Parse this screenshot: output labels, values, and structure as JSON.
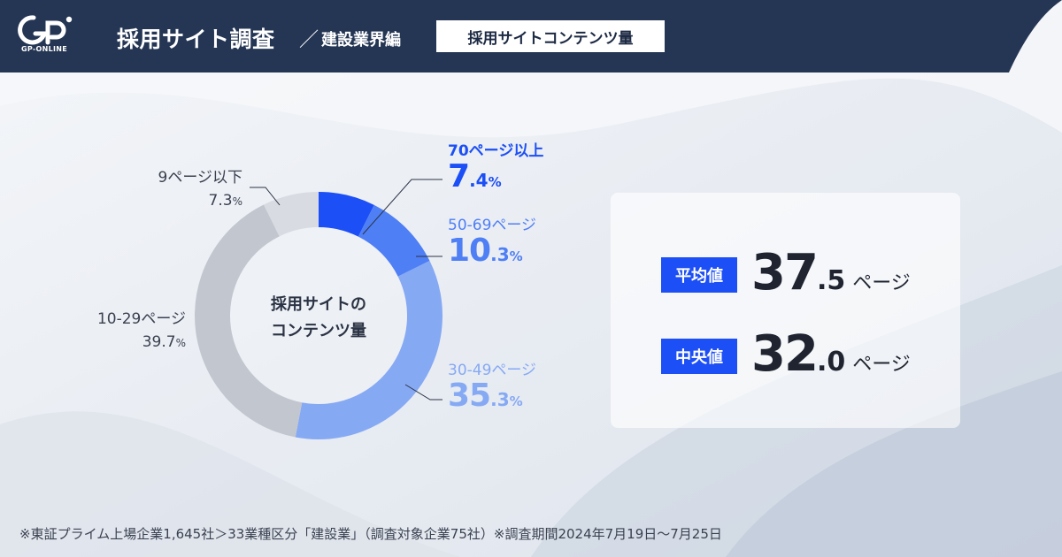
{
  "header": {
    "logo_text": "GP-ONLINE",
    "title": "採用サイト調査",
    "slash": "／",
    "subtitle": "建設業界編",
    "tag": "採用サイトコンテンツ量"
  },
  "chart_data": {
    "type": "pie",
    "center_label": [
      "採用サイトの",
      "コンテンツ量"
    ],
    "categories": [
      "70ページ以上",
      "50-69ページ",
      "30-49ページ",
      "10-29ページ",
      "9ページ以下"
    ],
    "values": [
      7.4,
      10.3,
      35.3,
      39.7,
      7.3
    ],
    "unit": "%",
    "colors": [
      "#1c4ff5",
      "#4f7ff5",
      "#86a9f4",
      "#c2c6cf",
      "#d8dbe1"
    ]
  },
  "labels": {
    "s70": {
      "name": "70ページ以上",
      "int": "7",
      "dec": ".4",
      "pct": "%"
    },
    "s50": {
      "name": "50-69ページ",
      "int": "10",
      "dec": ".3",
      "pct": "%"
    },
    "s30": {
      "name": "30-49ページ",
      "int": "35",
      "dec": ".3",
      "pct": "%"
    },
    "s10": {
      "name": "10-29ページ",
      "int": "39.7",
      "pct": "%"
    },
    "s9": {
      "name": "9ページ以下",
      "int": "7.3",
      "pct": "%"
    }
  },
  "stats": {
    "mean": {
      "label": "平均値",
      "int": "37",
      "dec": ".5",
      "unit": "ページ"
    },
    "median": {
      "label": "中央値",
      "int": "32",
      "dec": ".0",
      "unit": "ページ"
    }
  },
  "footnote": "※東証プライム上場企業1,645社＞33業種区分「建設業」（調査対象企業75社）※調査期間2024年7月19日～7月25日"
}
